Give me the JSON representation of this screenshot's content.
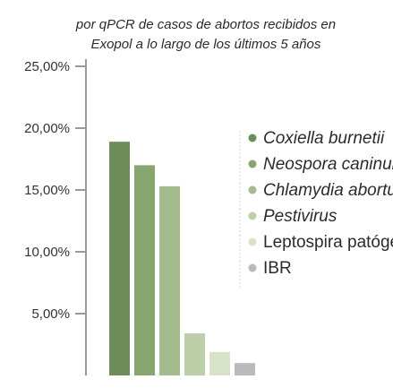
{
  "chart_data": {
    "type": "bar",
    "title_lines": [
      "",
      "por qPCR de casos de abortos recibidos en",
      "Exopol a lo largo de los últimos 5 años"
    ],
    "ylim": [
      0,
      25
    ],
    "yticks": [
      5,
      10,
      15,
      20,
      25
    ],
    "ytick_labels": [
      "5,00%",
      "10,00%",
      "15,00%",
      "20,00%",
      "25,00%"
    ],
    "legend_position": "top-right",
    "series": [
      {
        "name": "Coxiella burnetii",
        "value": 18.9,
        "color": "#6e8b5a",
        "italic": true
      },
      {
        "name": "Neospora caninum",
        "value": 17.0,
        "color": "#87a56e",
        "italic": true
      },
      {
        "name": "Chlamydia abortus",
        "value": 15.3,
        "color": "#a3bb8d",
        "italic": true
      },
      {
        "name": "Pestivirus",
        "value": 3.4,
        "color": "#bccfa9",
        "italic": true
      },
      {
        "name": "Leptospira patógenas",
        "value": 1.9,
        "color": "#d7e2c9",
        "italic": false
      },
      {
        "name": "IBR",
        "value": 1.0,
        "color": "#b9babb",
        "italic": false
      }
    ]
  }
}
